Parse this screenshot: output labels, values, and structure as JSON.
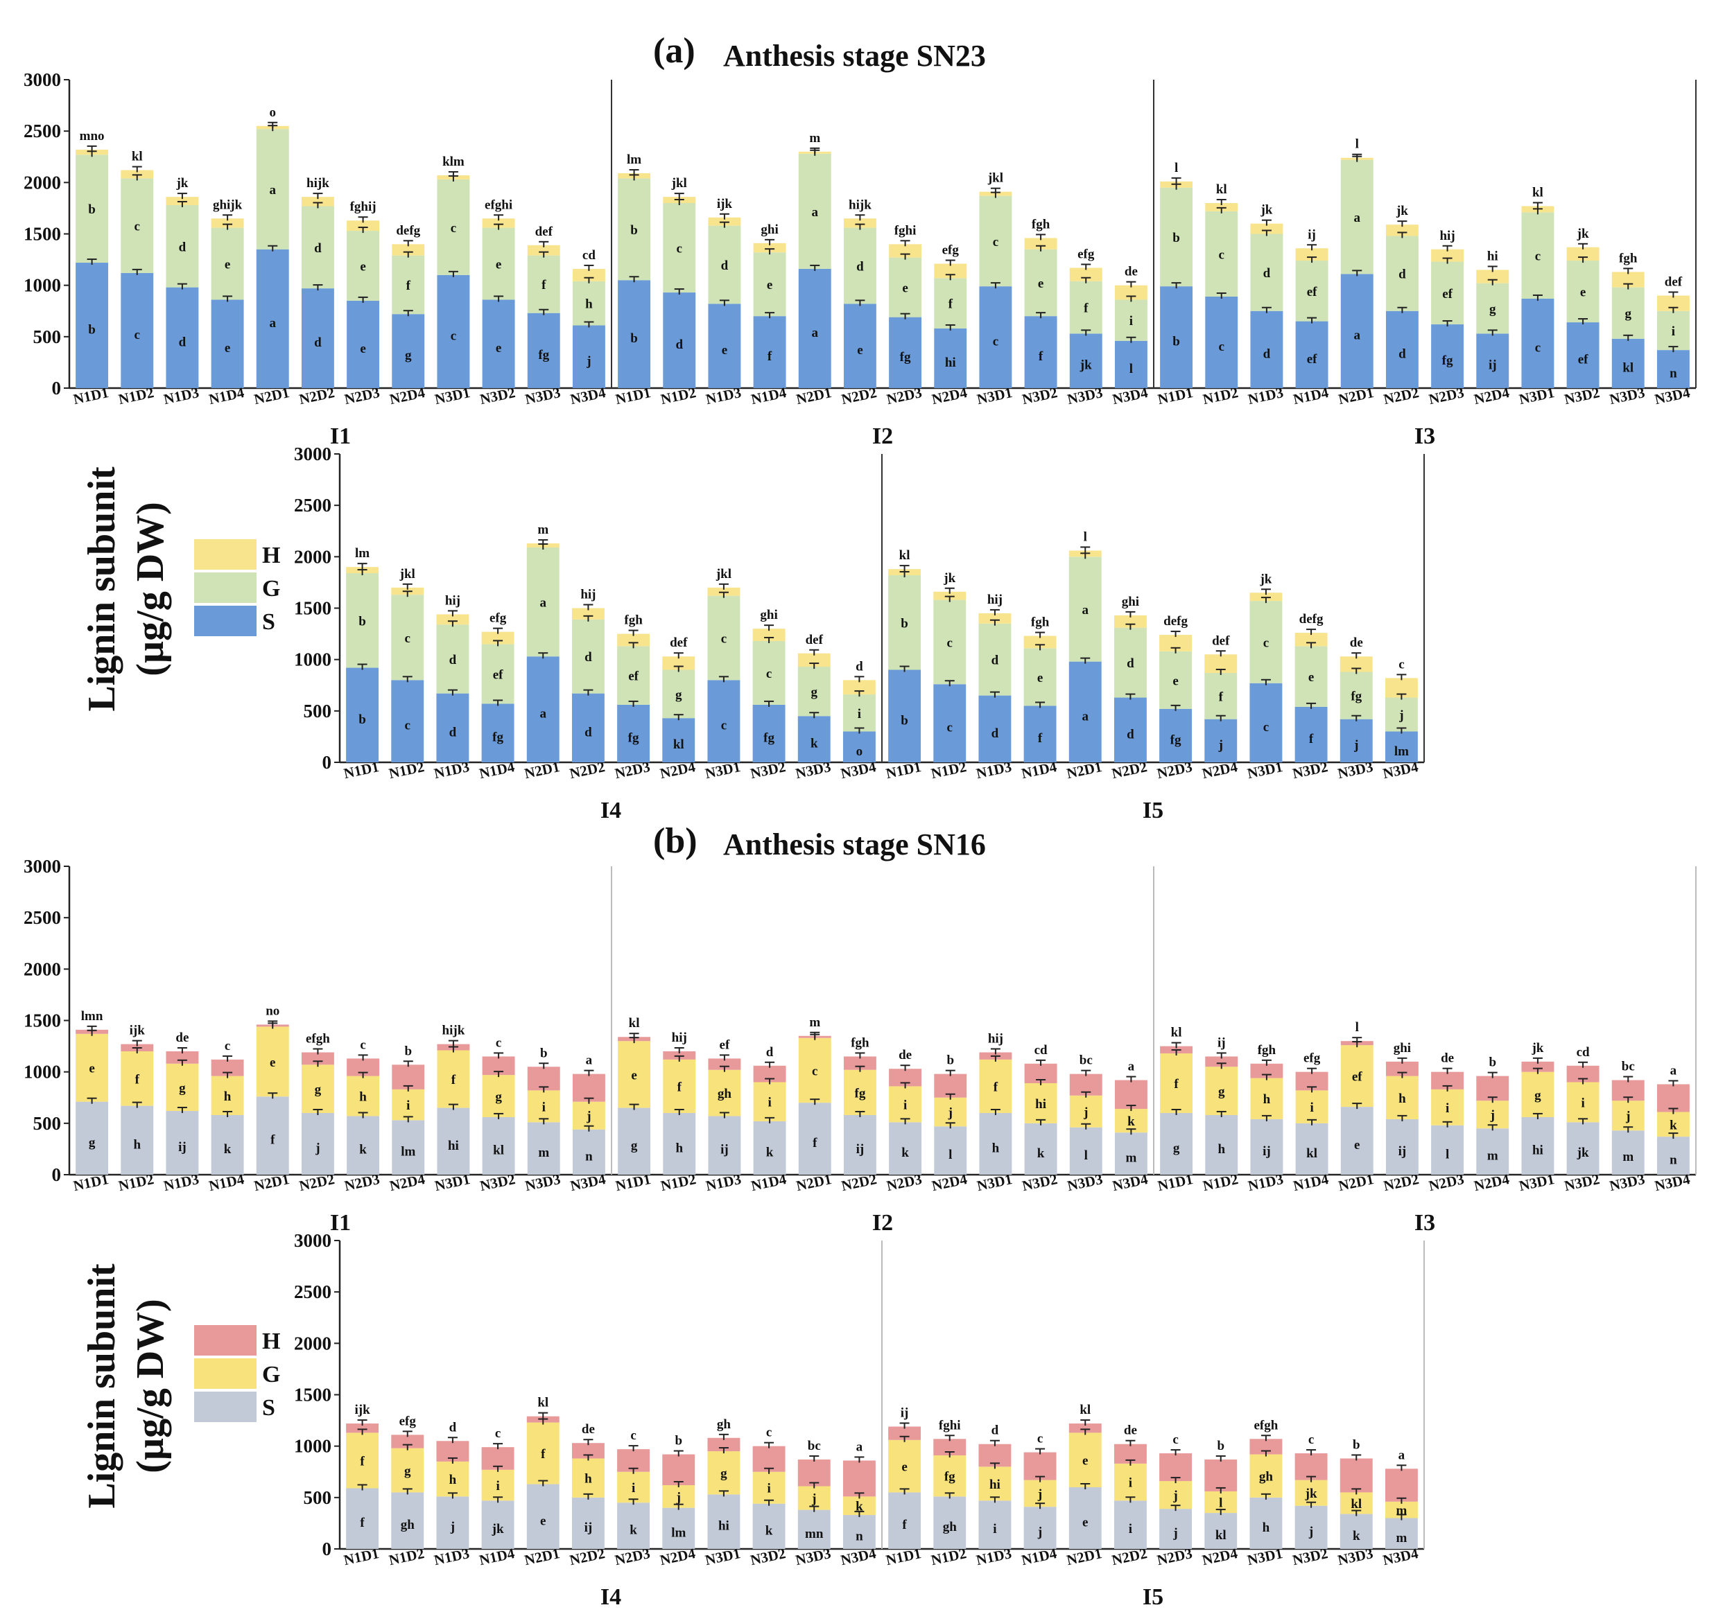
{
  "colors": {
    "a": {
      "S": "#6a9bd8",
      "G": "#cfe3b6",
      "H": "#f9e48e"
    },
    "b": {
      "S": "#c2cad8",
      "G": "#f7e27b",
      "H": "#e89a9a"
    }
  },
  "figure": {
    "a_tag": "(a)",
    "a_title": "Anthesis stage SN23",
    "b_tag": "(b)",
    "b_title": "Anthesis stage SN16",
    "ylabel_line1": "Lignin subunit",
    "ylabel_line2": "(µg/g DW)",
    "legend": [
      "H",
      "G",
      "S"
    ],
    "yticks": [
      "0",
      "500",
      "1000",
      "1500",
      "2000",
      "2500",
      "3000"
    ],
    "groups": [
      "I1",
      "I2",
      "I3",
      "I4",
      "I5"
    ],
    "treatments": [
      "N1D1",
      "N1D2",
      "N1D3",
      "N1D4",
      "N2D1",
      "N2D2",
      "N2D3",
      "N2D4",
      "N3D1",
      "N3D2",
      "N3D3",
      "N3D4"
    ]
  },
  "chart_data": [
    {
      "type": "bar",
      "stacked": true,
      "title": "(a) Anthesis stage SN23",
      "ylabel": "Lignin subunit (µg/g DW)",
      "ylim": [
        0,
        3000
      ],
      "legend": [
        "H",
        "G",
        "S"
      ],
      "categories": [
        "N1D1",
        "N1D2",
        "N1D3",
        "N1D4",
        "N2D1",
        "N2D2",
        "N2D3",
        "N2D4",
        "N3D1",
        "N3D2",
        "N3D3",
        "N3D4"
      ],
      "groups": [
        {
          "name": "I1",
          "S": [
            1220,
            1120,
            980,
            860,
            1350,
            970,
            850,
            720,
            1100,
            860,
            730,
            610
          ],
          "G": [
            1050,
            920,
            800,
            700,
            1170,
            800,
            680,
            570,
            930,
            700,
            560,
            430
          ],
          "H": [
            50,
            80,
            80,
            90,
            30,
            90,
            100,
            110,
            40,
            90,
            100,
            120
          ],
          "total_letters": [
            "mno",
            "kl",
            "jk",
            "ghijk",
            "o",
            "hijk",
            "fghij",
            "defg",
            "klm",
            "efghi",
            "def",
            "cd"
          ],
          "G_letters": [
            "b",
            "c",
            "d",
            "e",
            "a",
            "d",
            "e",
            "f",
            "c",
            "e",
            "f",
            "h"
          ],
          "S_letters": [
            "b",
            "c",
            "d",
            "e",
            "a",
            "d",
            "e",
            "g",
            "c",
            "e",
            "fg",
            "j"
          ]
        },
        {
          "name": "I2",
          "S": [
            1050,
            930,
            820,
            700,
            1160,
            820,
            690,
            580,
            990,
            700,
            530,
            460
          ],
          "G": [
            990,
            870,
            760,
            620,
            1120,
            740,
            580,
            490,
            880,
            650,
            510,
            400
          ],
          "H": [
            50,
            60,
            80,
            90,
            20,
            90,
            130,
            140,
            40,
            110,
            130,
            140
          ],
          "total_letters": [
            "lm",
            "jkl",
            "ijk",
            "ghi",
            "m",
            "hijk",
            "fghi",
            "efg",
            "jkl",
            "fgh",
            "efg",
            "de"
          ],
          "G_letters": [
            "b",
            "c",
            "d",
            "e",
            "a",
            "d",
            "e",
            "f",
            "c",
            "e",
            "f",
            "i"
          ],
          "S_letters": [
            "b",
            "d",
            "e",
            "f",
            "a",
            "e",
            "fg",
            "hi",
            "c",
            "f",
            "jk",
            "l"
          ]
        },
        {
          "name": "I3",
          "S": [
            990,
            890,
            750,
            650,
            1110,
            750,
            620,
            530,
            870,
            640,
            480,
            370
          ],
          "G": [
            960,
            830,
            750,
            590,
            1110,
            730,
            610,
            490,
            840,
            600,
            500,
            380
          ],
          "H": [
            60,
            80,
            100,
            120,
            20,
            110,
            120,
            130,
            60,
            130,
            150,
            150
          ],
          "total_letters": [
            "l",
            "kl",
            "jk",
            "ij",
            "l",
            "jk",
            "hij",
            "hi",
            "kl",
            "jk",
            "fgh",
            "def"
          ],
          "G_letters": [
            "b",
            "c",
            "d",
            "ef",
            "a",
            "d",
            "ef",
            "g",
            "c",
            "e",
            "g",
            "i"
          ],
          "S_letters": [
            "b",
            "c",
            "d",
            "ef",
            "a",
            "d",
            "fg",
            "ij",
            "c",
            "ef",
            "kl",
            "n"
          ]
        }
      ]
    },
    {
      "type": "bar",
      "stacked": true,
      "title": "(a) Anthesis stage SN23",
      "ylabel": "Lignin subunit (µg/g DW)",
      "ylim": [
        0,
        3000
      ],
      "legend": [
        "H",
        "G",
        "S"
      ],
      "categories": [
        "N1D1",
        "N1D2",
        "N1D3",
        "N1D4",
        "N2D1",
        "N2D2",
        "N2D3",
        "N2D4",
        "N3D1",
        "N3D2",
        "N3D3",
        "N3D4"
      ],
      "groups": [
        {
          "name": "I4",
          "S": [
            920,
            800,
            670,
            570,
            1030,
            670,
            560,
            430,
            800,
            560,
            450,
            300
          ],
          "G": [
            920,
            830,
            670,
            580,
            1060,
            720,
            570,
            470,
            820,
            620,
            480,
            360
          ],
          "H": [
            60,
            70,
            100,
            120,
            40,
            110,
            120,
            130,
            80,
            120,
            130,
            140
          ],
          "total_letters": [
            "lm",
            "jkl",
            "hij",
            "efg",
            "m",
            "hij",
            "fgh",
            "def",
            "jkl",
            "ghi",
            "def",
            "d"
          ],
          "G_letters": [
            "b",
            "c",
            "d",
            "ef",
            "a",
            "d",
            "ef",
            "g",
            "c",
            "c",
            "g",
            "i"
          ],
          "S_letters": [
            "b",
            "c",
            "d",
            "fg",
            "a",
            "d",
            "fg",
            "kl",
            "c",
            "fg",
            "k",
            "o"
          ]
        },
        {
          "name": "I5",
          "S": [
            900,
            760,
            650,
            550,
            980,
            630,
            520,
            420,
            770,
            540,
            420,
            300
          ],
          "G": [
            920,
            820,
            700,
            560,
            1020,
            680,
            560,
            450,
            800,
            590,
            460,
            330
          ],
          "H": [
            60,
            80,
            100,
            120,
            60,
            120,
            160,
            180,
            80,
            130,
            150,
            190
          ],
          "total_letters": [
            "kl",
            "jk",
            "hij",
            "fgh",
            "l",
            "ghi",
            "defg",
            "def",
            "jk",
            "defg",
            "de",
            "c"
          ],
          "G_letters": [
            "b",
            "c",
            "d",
            "e",
            "a",
            "d",
            "e",
            "f",
            "c",
            "e",
            "fg",
            "j"
          ],
          "S_letters": [
            "b",
            "c",
            "d",
            "f",
            "a",
            "d",
            "fg",
            "j",
            "c",
            "f",
            "j",
            "lm"
          ]
        }
      ]
    },
    {
      "type": "bar",
      "stacked": true,
      "title": "(b) Anthesis stage SN16",
      "ylabel": "Lignin subunit (µg/g DW)",
      "ylim": [
        0,
        3000
      ],
      "legend": [
        "H",
        "G",
        "S"
      ],
      "categories": [
        "N1D1",
        "N1D2",
        "N1D3",
        "N1D4",
        "N2D1",
        "N2D2",
        "N2D3",
        "N2D4",
        "N3D1",
        "N3D2",
        "N3D3",
        "N3D4"
      ],
      "groups": [
        {
          "name": "I1",
          "S": [
            710,
            670,
            620,
            580,
            760,
            600,
            570,
            530,
            650,
            560,
            510,
            440
          ],
          "G": [
            660,
            530,
            460,
            380,
            680,
            470,
            390,
            300,
            560,
            410,
            310,
            270
          ],
          "H": [
            40,
            70,
            120,
            160,
            20,
            120,
            170,
            240,
            60,
            180,
            230,
            270
          ],
          "total_letters": [
            "lmn",
            "ijk",
            "de",
            "c",
            "no",
            "efgh",
            "c",
            "b",
            "hijk",
            "c",
            "b",
            "a"
          ],
          "G_letters": [
            "e",
            "f",
            "g",
            "h",
            "e",
            "g",
            "h",
            "i",
            "f",
            "g",
            "i",
            "j"
          ],
          "S_letters": [
            "g",
            "h",
            "ij",
            "k",
            "f",
            "j",
            "k",
            "lm",
            "hi",
            "kl",
            "m",
            "n"
          ]
        },
        {
          "name": "I2",
          "S": [
            650,
            600,
            570,
            520,
            700,
            580,
            510,
            470,
            600,
            500,
            460,
            410
          ],
          "G": [
            650,
            520,
            450,
            380,
            630,
            440,
            350,
            280,
            520,
            390,
            310,
            230
          ],
          "H": [
            40,
            80,
            110,
            160,
            20,
            130,
            170,
            230,
            70,
            190,
            210,
            280
          ],
          "total_letters": [
            "kl",
            "hij",
            "ef",
            "d",
            "m",
            "fgh",
            "de",
            "b",
            "hij",
            "cd",
            "bc",
            "a"
          ],
          "G_letters": [
            "e",
            "f",
            "gh",
            "i",
            "c",
            "fg",
            "i",
            "j",
            "f",
            "hi",
            "j",
            "k"
          ],
          "S_letters": [
            "g",
            "h",
            "ij",
            "k",
            "f",
            "ij",
            "k",
            "l",
            "h",
            "k",
            "l",
            "m"
          ]
        },
        {
          "name": "I3",
          "S": [
            600,
            580,
            540,
            500,
            660,
            540,
            480,
            450,
            560,
            510,
            430,
            370
          ],
          "G": [
            580,
            470,
            400,
            320,
            600,
            420,
            350,
            270,
            440,
            390,
            290,
            240
          ],
          "H": [
            70,
            100,
            140,
            180,
            40,
            140,
            170,
            240,
            100,
            160,
            200,
            270
          ],
          "total_letters": [
            "kl",
            "ij",
            "fgh",
            "efg",
            "l",
            "ghi",
            "de",
            "b",
            "jk",
            "cd",
            "bc",
            "a"
          ],
          "G_letters": [
            "f",
            "g",
            "h",
            "i",
            "ef",
            "h",
            "i",
            "j",
            "g",
            "i",
            "j",
            "k"
          ],
          "S_letters": [
            "g",
            "h",
            "ij",
            "kl",
            "e",
            "ij",
            "l",
            "m",
            "hi",
            "jk",
            "m",
            "n"
          ]
        }
      ]
    },
    {
      "type": "bar",
      "stacked": true,
      "title": "(b) Anthesis stage SN16",
      "ylabel": "Lignin subunit (µg/g DW)",
      "ylim": [
        0,
        3000
      ],
      "legend": [
        "H",
        "G",
        "S"
      ],
      "categories": [
        "N1D1",
        "N1D2",
        "N1D3",
        "N1D4",
        "N2D1",
        "N2D2",
        "N2D3",
        "N2D4",
        "N3D1",
        "N3D2",
        "N3D3",
        "N3D4"
      ],
      "groups": [
        {
          "name": "I4",
          "S": [
            590,
            550,
            510,
            470,
            630,
            500,
            450,
            400,
            530,
            440,
            380,
            330
          ],
          "G": [
            540,
            430,
            340,
            300,
            600,
            380,
            300,
            220,
            420,
            310,
            230,
            180
          ],
          "H": [
            90,
            130,
            200,
            220,
            60,
            150,
            220,
            300,
            130,
            250,
            260,
            350
          ],
          "total_letters": [
            "ijk",
            "efg",
            "d",
            "c",
            "kl",
            "de",
            "c",
            "b",
            "gh",
            "c",
            "bc",
            "a"
          ],
          "G_letters": [
            "f",
            "g",
            "h",
            "i",
            "f",
            "h",
            "i",
            "j",
            "g",
            "i",
            "j",
            "k"
          ],
          "S_letters": [
            "f",
            "gh",
            "j",
            "jk",
            "e",
            "ij",
            "k",
            "lm",
            "hi",
            "k",
            "mn",
            "n"
          ]
        },
        {
          "name": "I5",
          "S": [
            550,
            510,
            470,
            410,
            600,
            470,
            390,
            350,
            500,
            420,
            340,
            300
          ],
          "G": [
            510,
            400,
            330,
            260,
            530,
            360,
            270,
            210,
            420,
            250,
            210,
            160
          ],
          "H": [
            130,
            160,
            220,
            270,
            90,
            190,
            270,
            310,
            150,
            260,
            330,
            320
          ],
          "total_letters": [
            "ij",
            "fghi",
            "d",
            "c",
            "kl",
            "de",
            "c",
            "b",
            "efgh",
            "c",
            "b",
            "a"
          ],
          "G_letters": [
            "e",
            "fg",
            "hi",
            "j",
            "e",
            "i",
            "j",
            "l",
            "gh",
            "jk",
            "kl",
            "m"
          ],
          "S_letters": [
            "f",
            "gh",
            "i",
            "j",
            "e",
            "i",
            "j",
            "kl",
            "h",
            "j",
            "k",
            "m"
          ]
        }
      ]
    }
  ]
}
